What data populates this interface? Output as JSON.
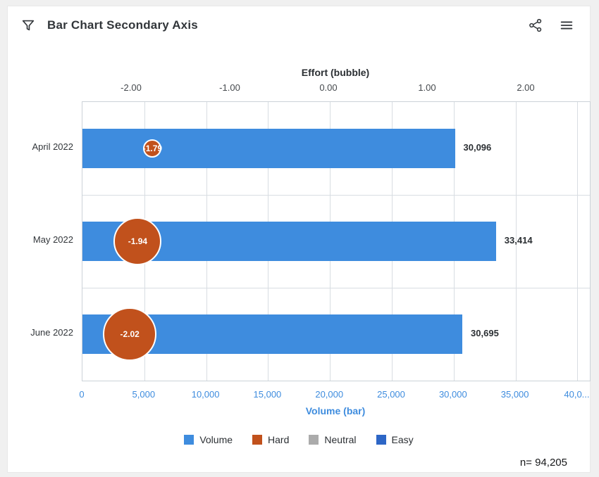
{
  "header": {
    "title": "Bar Chart Secondary Axis",
    "icons": [
      "filter-icon",
      "share-icon",
      "menu-icon"
    ]
  },
  "chart_data": {
    "type": "bar",
    "orientation": "horizontal",
    "categories": [
      "April 2022",
      "May 2022",
      "June 2022"
    ],
    "series": [
      {
        "name": "Volume",
        "render": "bar",
        "axis": "bottom",
        "values": [
          30096,
          33414,
          30695
        ],
        "labels": [
          "30,096",
          "33,414",
          "30,695"
        ],
        "color": "#3e8cde"
      },
      {
        "name": "Effort",
        "render": "bubble",
        "axis": "top",
        "values": [
          -1.79,
          -1.94,
          -2.02
        ],
        "labels": [
          "-1.79",
          "-1.94",
          "-2.02"
        ],
        "radii": [
          13,
          34,
          38
        ],
        "color": "#c1511c"
      }
    ],
    "top_axis": {
      "title": "Effort (bubble)",
      "ticks": [
        "-2.00",
        "-1.00",
        "0.00",
        "1.00",
        "2.00"
      ],
      "tick_values": [
        -2,
        -1,
        0,
        1,
        2
      ],
      "range": [
        -2.5,
        2.643
      ]
    },
    "bottom_axis": {
      "title": "Volume (bar)",
      "ticks": [
        "0",
        "5,000",
        "10,000",
        "15,000",
        "20,000",
        "25,000",
        "30,000",
        "35,000",
        "40,0..."
      ],
      "tick_values": [
        0,
        5000,
        10000,
        15000,
        20000,
        25000,
        30000,
        35000,
        40000
      ],
      "range": [
        0,
        41000
      ]
    },
    "legend": [
      {
        "label": "Volume",
        "color": "#3e8cde"
      },
      {
        "label": "Hard",
        "color": "#c1511c"
      },
      {
        "label": "Neutral",
        "color": "#ababab"
      },
      {
        "label": "Easy",
        "color": "#2d66c6"
      }
    ],
    "grid": true,
    "legend_position": "bottom-center",
    "footnote": "n= 94,205"
  }
}
